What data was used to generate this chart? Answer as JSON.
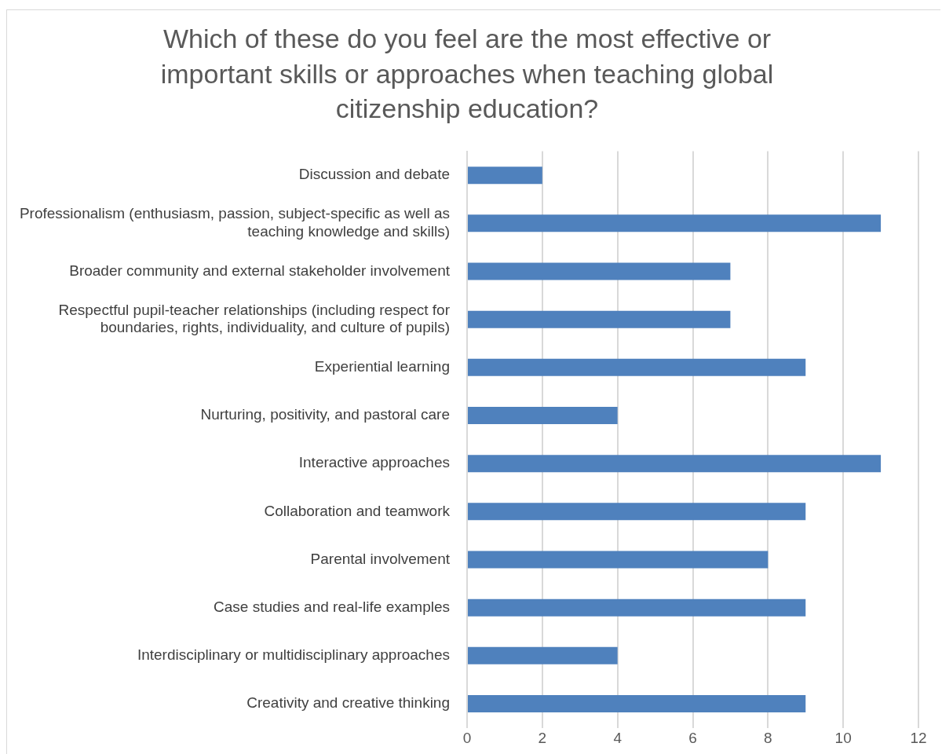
{
  "chart_data": {
    "type": "bar",
    "orientation": "horizontal",
    "title": "Which of these do you feel are the most effective or important skills or approaches when teaching global citizenship education?",
    "categories": [
      "Discussion and debate",
      "Professionalism (enthusiasm, passion, subject-specific as well as teaching knowledge and skills)",
      "Broader community and external stakeholder involvement",
      "Respectful pupil-teacher relationships (including respect for boundaries, rights, individuality, and culture of pupils)",
      "Experiential learning",
      "Nurturing, positivity, and pastoral care",
      "Interactive approaches",
      "Collaboration and teamwork",
      "Parental involvement",
      "Case studies and real-life examples",
      "Interdisciplinary or multidisciplinary approaches",
      "Creativity and creative thinking"
    ],
    "values": [
      2,
      11,
      7,
      7,
      9,
      4,
      11,
      9,
      8,
      9,
      4,
      9
    ],
    "color": "#4f81bd",
    "xlim": [
      0,
      12
    ],
    "xticks": [
      0,
      2,
      4,
      6,
      8,
      10,
      12
    ],
    "grid": "x",
    "legend": false
  }
}
